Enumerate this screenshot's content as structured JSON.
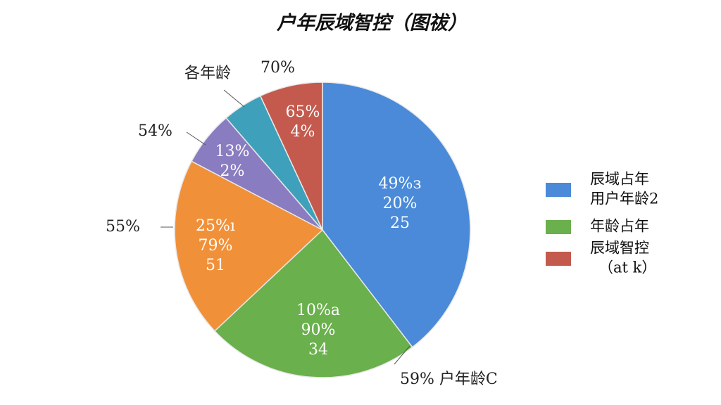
{
  "chart_data": {
    "type": "pie",
    "title": "户年辰域智控（图祓）",
    "slices": [
      {
        "value": 39.6,
        "color": "#4a8ad8",
        "labels": [
          "49%з",
          "20%",
          "25"
        ]
      },
      {
        "value": 23.4,
        "color": "#6ab04c",
        "labels": [
          "10%a",
          "90%",
          "34"
        ],
        "outer_label": "59% 户年龄C"
      },
      {
        "value": 19.7,
        "color": "#f0913a",
        "labels": [
          "25%ı",
          "79%",
          "51"
        ],
        "outer_label": "55%"
      },
      {
        "value": 6.0,
        "color": "#8a7cc0",
        "labels": [
          "13%",
          "2%"
        ],
        "outer_label": "54%"
      },
      {
        "value": 4.4,
        "color": "#3ea0bb",
        "labels": [],
        "outer_label": "各年龄"
      },
      {
        "value": 6.9,
        "color": "#c45a4e",
        "labels": [
          "65%",
          "4%"
        ],
        "outer_label": "70%"
      }
    ],
    "legend": [
      {
        "color": "#4a8ad8",
        "lines": [
          "辰域占年",
          "用户年龄2"
        ]
      },
      {
        "color": "#6ab04c",
        "lines": [
          "年龄占年"
        ]
      },
      {
        "color": "#c45a4e",
        "lines": [
          "辰域智控",
          "（at k）"
        ]
      }
    ]
  }
}
